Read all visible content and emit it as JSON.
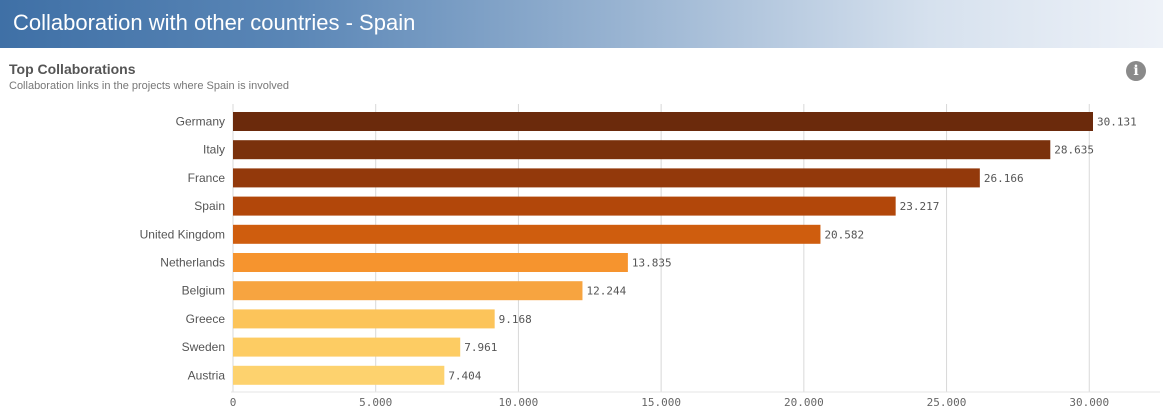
{
  "header": {
    "title": "Collaboration with other countries - Spain"
  },
  "section": {
    "title": "Top Collaborations",
    "subtitle": "Collaboration links in the projects where Spain is involved",
    "info_icon": "info-icon"
  },
  "chart_data": {
    "type": "bar",
    "orientation": "horizontal",
    "categories": [
      "Germany",
      "Italy",
      "France",
      "Spain",
      "United Kingdom",
      "Netherlands",
      "Belgium",
      "Greece",
      "Sweden",
      "Austria"
    ],
    "values": [
      30131,
      28635,
      26166,
      23217,
      20582,
      13835,
      12244,
      9168,
      7961,
      7404
    ],
    "value_labels": [
      "30.131",
      "28.635",
      "26.166",
      "23.217",
      "20.582",
      "13.835",
      "12.244",
      "9.168",
      "7.961",
      "7.404"
    ],
    "colors": [
      "#6b2a0c",
      "#7a310c",
      "#93390b",
      "#b2470a",
      "#cf5d0e",
      "#f6942e",
      "#f7a440",
      "#fcc45a",
      "#fdcc63",
      "#fdd26e"
    ],
    "xticks": [
      0,
      5000,
      10000,
      15000,
      20000,
      25000,
      30000
    ],
    "xtick_labels": [
      "0",
      "5.000",
      "10.000",
      "15.000",
      "20.000",
      "25.000",
      "30.000"
    ],
    "xlim": [
      0,
      30131
    ],
    "title": "Top Collaborations",
    "xlabel": "",
    "ylabel": "",
    "grid": "vertical"
  }
}
